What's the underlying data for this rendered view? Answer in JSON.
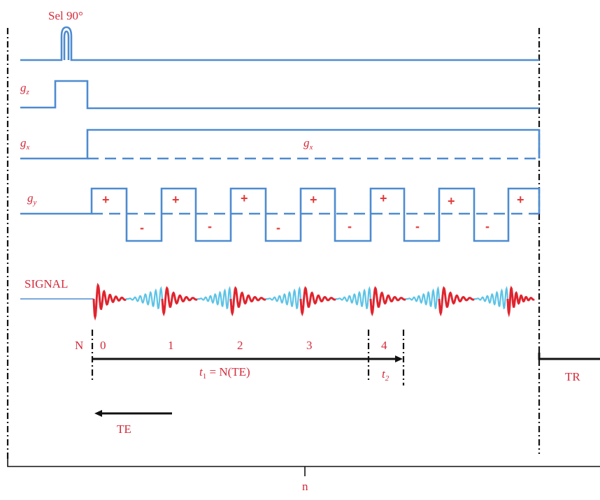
{
  "labels": {
    "rf": "Sel 90°",
    "gz_main": "g",
    "gz_sub": "z",
    "gx_main": "g",
    "gx_sub": "x",
    "gx_mid_main": "g",
    "gx_mid_sub": "x",
    "gy_main": "g",
    "gy_sub": "y",
    "signal": "SIGNAL",
    "n_label": "N",
    "echo_0": "0",
    "echo_1": "1",
    "echo_2": "2",
    "echo_3": "3",
    "echo_4": "4",
    "t1_main": "t",
    "t1_sub": "1",
    "t1_rest": " = N(TE)",
    "t2_main": "t",
    "t2_sub": "2",
    "tr": "TR",
    "te": "TE",
    "n_bottom": "n"
  },
  "lobes": {
    "positive": "+",
    "negative": "-"
  },
  "colors": {
    "trace": "#4d8bd0",
    "label_red": "#d42a3a",
    "echo_red": "#e0242e",
    "echo_cyan": "#5cc3e6",
    "axis": "#111111"
  }
}
